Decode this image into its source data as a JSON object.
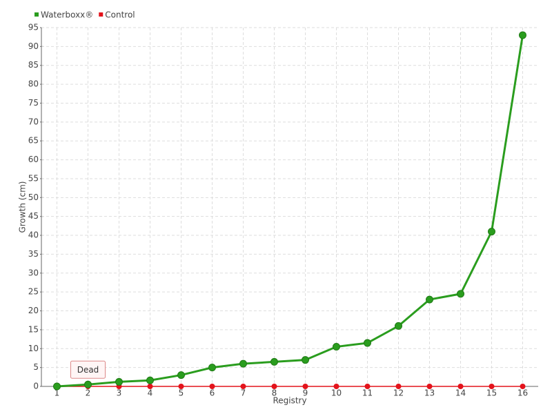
{
  "chart_data": {
    "type": "line",
    "x_label": "Registry",
    "y_label": "Growth (cm)",
    "categories": [
      "1",
      "2",
      "3",
      "4",
      "5",
      "6",
      "7",
      "8",
      "9",
      "10",
      "11",
      "12",
      "13",
      "14",
      "15",
      "16"
    ],
    "series": [
      {
        "name": "Waterboxx®",
        "color": "#2a9d1e",
        "values": [
          0,
          0.5,
          1.2,
          1.6,
          3,
          5,
          6,
          6.5,
          7,
          10.5,
          11.5,
          16,
          23,
          24.5,
          41,
          93
        ]
      },
      {
        "name": "Control",
        "color": "#e3131b",
        "values": [
          0,
          0,
          0,
          0,
          0,
          0,
          0,
          0,
          0,
          0,
          0,
          0,
          0,
          0,
          0,
          0
        ]
      }
    ],
    "annotation": "Dead",
    "ylim": [
      0,
      95
    ],
    "yticks": [
      0,
      5,
      10,
      15,
      20,
      25,
      30,
      35,
      40,
      45,
      50,
      55,
      60,
      65,
      70,
      75,
      80,
      85,
      90,
      95
    ],
    "grid": true,
    "legend": "top-left"
  }
}
